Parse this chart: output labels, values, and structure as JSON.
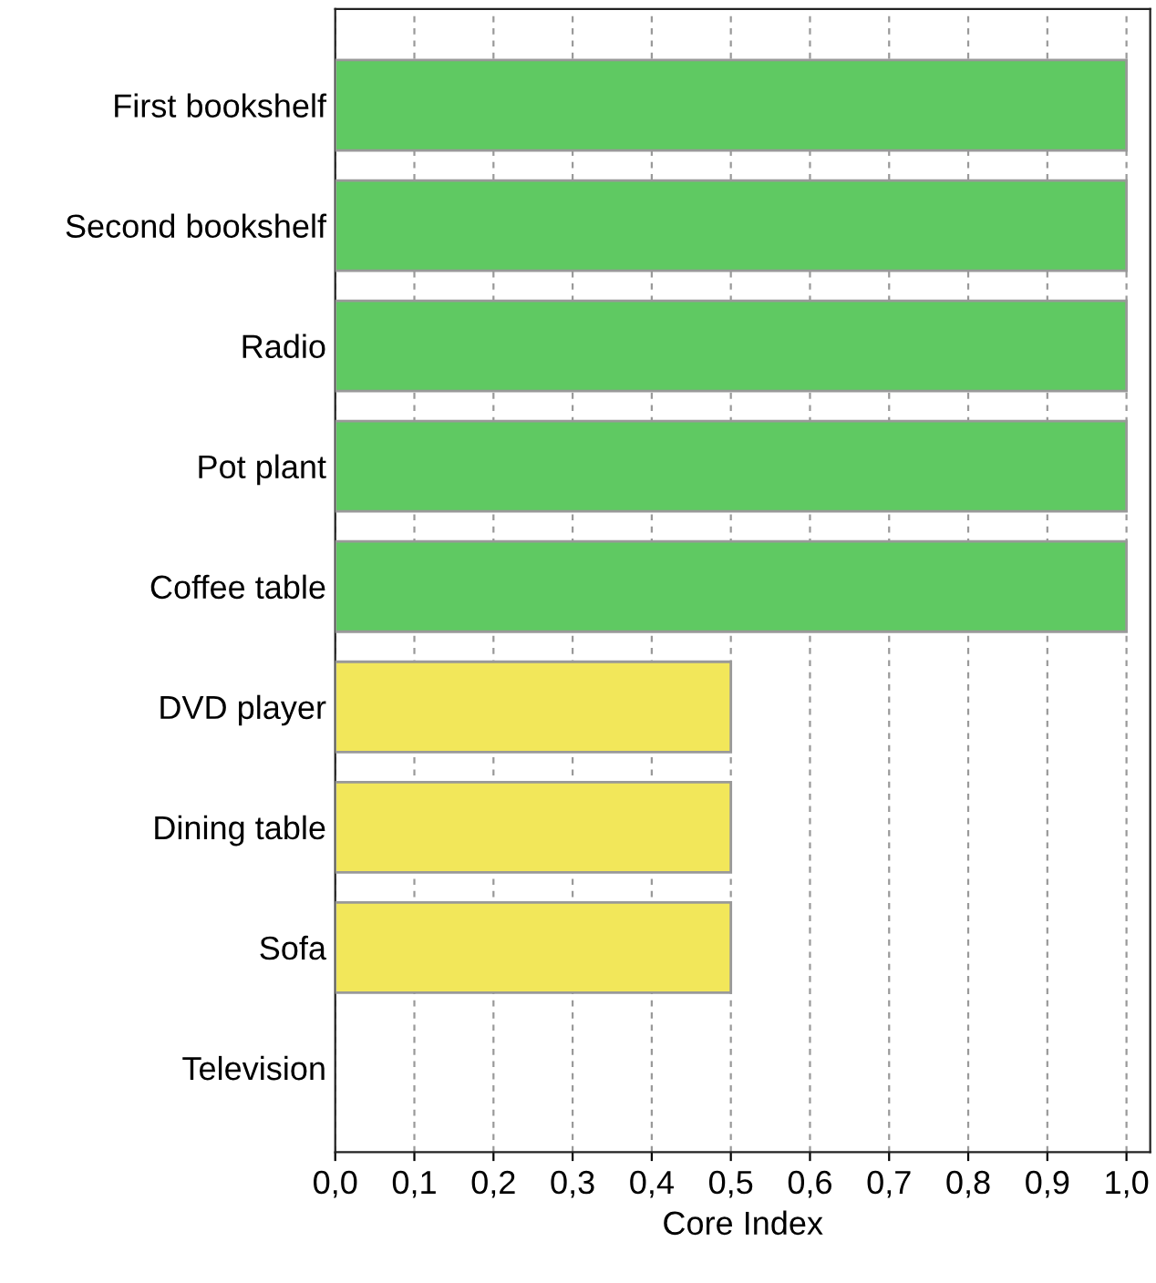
{
  "chart_data": {
    "type": "bar",
    "orientation": "horizontal",
    "xlabel": "Core Index",
    "categories": [
      "First bookshelf",
      "Second bookshelf",
      "Radio",
      "Pot plant",
      "Coffee table",
      "DVD player",
      "Dining table",
      "Sofa",
      "Television"
    ],
    "values": [
      1.0,
      1.0,
      1.0,
      1.0,
      1.0,
      0.5,
      0.5,
      0.5,
      0
    ],
    "colors": [
      "#5fc962",
      "#5fc962",
      "#5fc962",
      "#5fc962",
      "#5fc962",
      "#f2e75a",
      "#f2e75a",
      "#f2e75a",
      "#f2e75a"
    ],
    "xlim": [
      0,
      1.03
    ],
    "xticks": [
      {
        "value": 0,
        "label": "0,0"
      },
      {
        "value": 0.1,
        "label": "0,1"
      },
      {
        "value": 0.2,
        "label": "0,2"
      },
      {
        "value": 0.3,
        "label": "0,3"
      },
      {
        "value": 0.4,
        "label": "0,4"
      },
      {
        "value": 0.5,
        "label": "0,5"
      },
      {
        "value": 0.6,
        "label": "0,6"
      },
      {
        "value": 0.7,
        "label": "0,7"
      },
      {
        "value": 0.8,
        "label": "0,8"
      },
      {
        "value": 0.9,
        "label": "0,9"
      },
      {
        "value": 1.0,
        "label": "1,0"
      }
    ],
    "grid": "x"
  }
}
